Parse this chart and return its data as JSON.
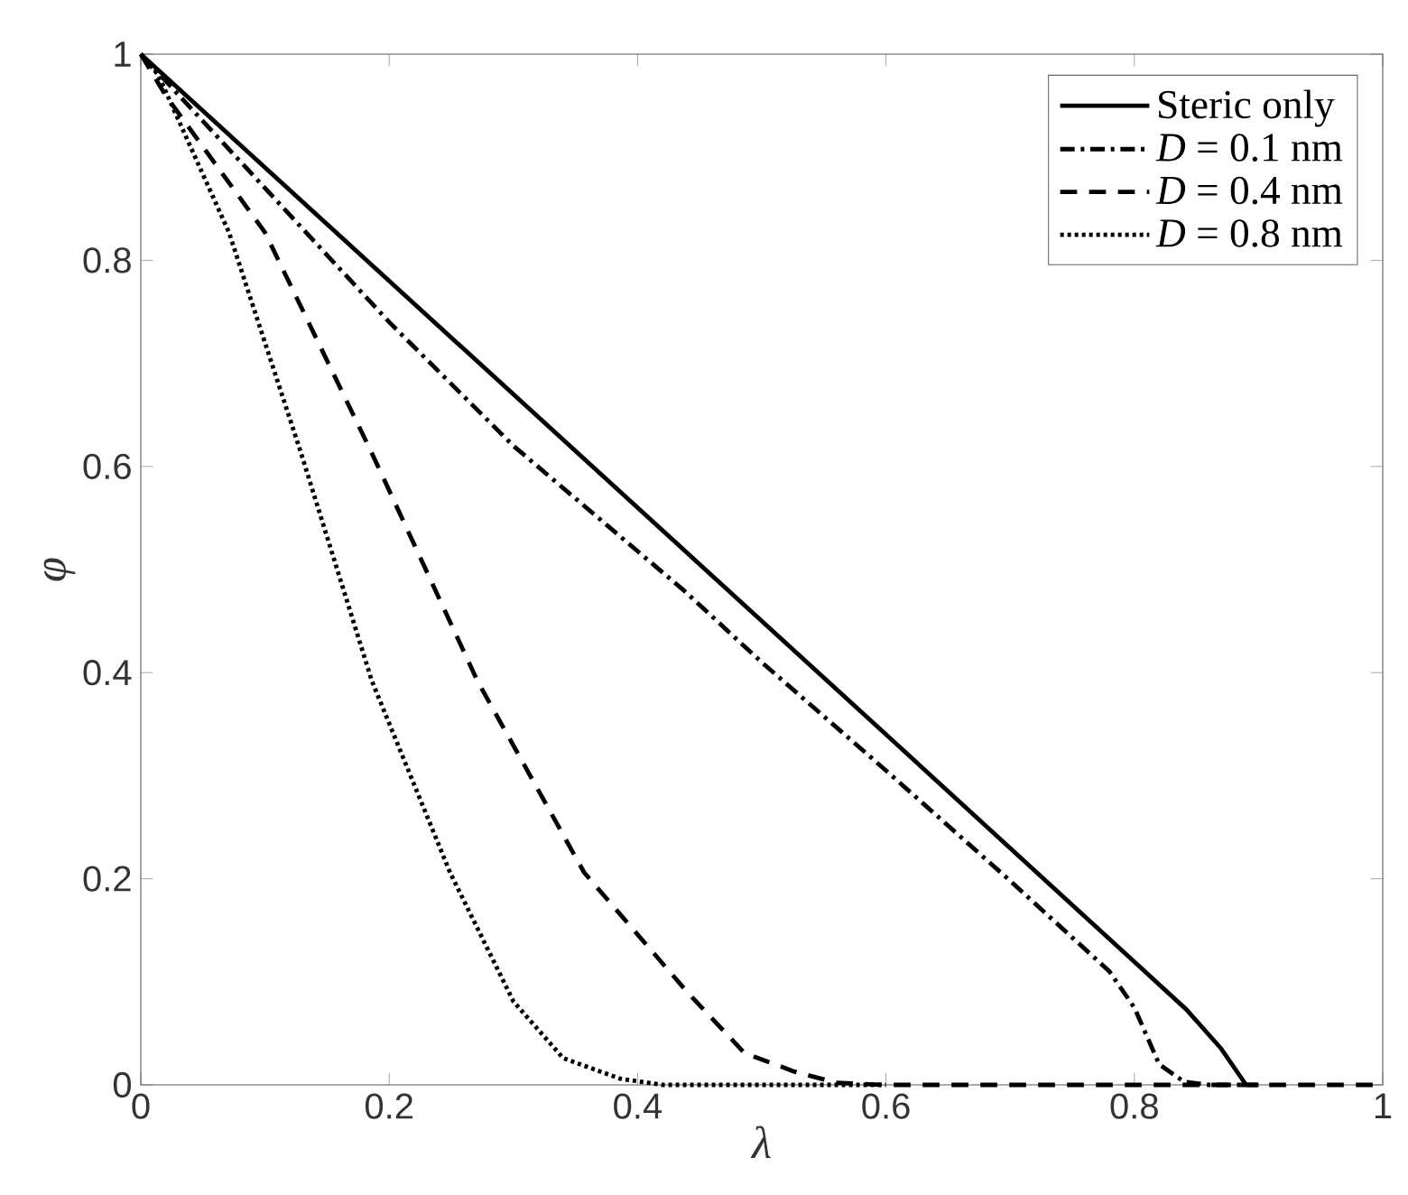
{
  "chart_data": {
    "type": "line",
    "xlabel": "λ",
    "ylabel": "φ",
    "xlim": [
      0,
      1
    ],
    "ylim": [
      0,
      1
    ],
    "xticks": [
      0,
      0.2,
      0.4,
      0.6,
      0.8,
      1
    ],
    "yticks": [
      0,
      0.2,
      0.4,
      0.6,
      0.8,
      1
    ],
    "grid": false,
    "legend": "top right",
    "marker": "none",
    "series": [
      {
        "name": "Steric only",
        "color": "#000000",
        "line_style": "solid",
        "x": [
          0,
          0.2,
          0.4,
          0.6,
          0.842,
          0.87,
          0.89
        ],
        "values": [
          1,
          0.78,
          0.56,
          0.34,
          0.073,
          0.035,
          0
        ]
      },
      {
        "name": "*D* = 0.1 nm",
        "color": "#000000",
        "line_style": "dashdot",
        "x": [
          0,
          0.1,
          0.2,
          0.3,
          0.437,
          0.5,
          0.6,
          0.7,
          0.78,
          0.8,
          0.82,
          0.84,
          0.86,
          0.9
        ],
        "values": [
          1,
          0.87,
          0.74,
          0.62,
          0.48,
          0.41,
          0.305,
          0.198,
          0.11,
          0.075,
          0.02,
          0.003,
          0,
          0
        ]
      },
      {
        "name": "*D* = 0.4 nm",
        "color": "#000000",
        "line_style": "dashed",
        "x": [
          0,
          0.02,
          0.1,
          0.186,
          0.271,
          0.357,
          0.44,
          0.486,
          0.526,
          0.56,
          0.6,
          1
        ],
        "values": [
          1,
          0.96,
          0.827,
          0.613,
          0.392,
          0.206,
          0.09,
          0.031,
          0.013,
          0.002,
          0,
          0
        ]
      },
      {
        "name": "*D* = 0.8 nm",
        "color": "#000000",
        "line_style": "dotted",
        "x": [
          0,
          0.014,
          0.071,
          0.129,
          0.186,
          0.249,
          0.3,
          0.34,
          0.386,
          0.42,
          0.6
        ],
        "values": [
          1,
          0.98,
          0.827,
          0.613,
          0.392,
          0.206,
          0.081,
          0.026,
          0.006,
          0,
          0
        ]
      }
    ]
  }
}
